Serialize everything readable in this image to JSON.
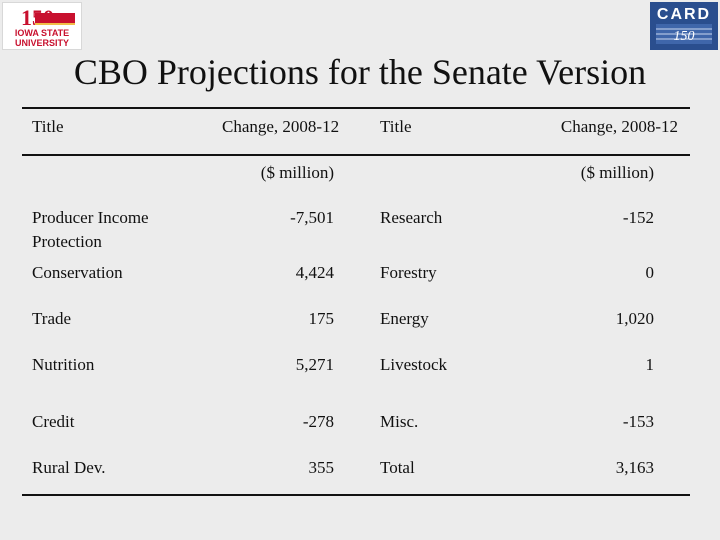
{
  "title": "CBO Projections for the Senate Version",
  "logos": {
    "left": {
      "text": "IOWA STATE UNIVERSITY",
      "badge": "150"
    },
    "right": {
      "text": "CARD",
      "badge": "150"
    },
    "brand_colors": {
      "isu_red": "#c8102e",
      "isu_gold": "#f1be48",
      "card_blue": "#2a4e8e"
    }
  },
  "headers": {
    "title_left": "Title",
    "change_left": "Change, 2008-12",
    "unit_left": "($ million)",
    "title_right": "Title",
    "change_right": "Change, 2008-12",
    "unit_right": "($ million)"
  },
  "rows": [
    {
      "left_title": "Producer Income Protection",
      "left_value": "-7,501",
      "right_title": "Research",
      "right_value": "-152"
    },
    {
      "left_title": "Conservation",
      "left_value": "4,424",
      "right_title": "Forestry",
      "right_value": "0"
    },
    {
      "left_title": "Trade",
      "left_value": "175",
      "right_title": "Energy",
      "right_value": "1,020"
    },
    {
      "left_title": "Nutrition",
      "left_value": "5,271",
      "right_title": "Livestock",
      "right_value": "1"
    },
    {
      "left_title": "Credit",
      "left_value": "-278",
      "right_title": "Misc.",
      "right_value": "-153"
    },
    {
      "left_title": "Rural Dev.",
      "left_value": "355",
      "right_title": "Total",
      "right_value": "3,163"
    }
  ]
}
